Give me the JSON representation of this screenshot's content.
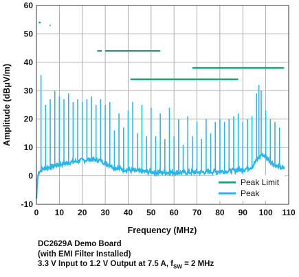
{
  "chart_data": {
    "type": "line",
    "xlabel": "Frequency (MHz)",
    "ylabel": "Amplitude (dBμV/m)",
    "xlim": [
      0,
      110
    ],
    "ylim": [
      -10,
      60
    ],
    "x_ticks": [
      0,
      10,
      20,
      30,
      40,
      50,
      60,
      70,
      80,
      90,
      100,
      110
    ],
    "y_ticks": [
      -10,
      0,
      10,
      20,
      30,
      40,
      50,
      60
    ],
    "grid": true,
    "legend_position": "bottom-right",
    "colors": {
      "peak_limit": "#1aa874",
      "peak": "#29b6e8",
      "grid": "#999999",
      "axis": "#333333"
    },
    "series": [
      {
        "name": "Peak Limit",
        "style": "step-segments",
        "segments": [
          {
            "x": [
              1.0,
              1.8
            ],
            "y": 54
          },
          {
            "x": [
              5.8,
              6.2
            ],
            "y": 53
          },
          {
            "x": [
              26.5,
              28.5
            ],
            "y": 44
          },
          {
            "x": [
              30,
              54
            ],
            "y": 44
          },
          {
            "x": [
              41,
              88
            ],
            "y": 34
          },
          {
            "x": [
              68,
              108
            ],
            "y": 38
          }
        ]
      },
      {
        "name": "Peak",
        "noise_floor": [
          [
            0,
            -8
          ],
          [
            0.5,
            -1
          ],
          [
            1,
            1.5
          ],
          [
            3,
            2.5
          ],
          [
            6,
            3.2
          ],
          [
            10,
            4
          ],
          [
            15,
            4.8
          ],
          [
            20,
            5.5
          ],
          [
            24,
            5.8
          ],
          [
            28,
            5.4
          ],
          [
            31,
            4.2
          ],
          [
            34,
            3.0
          ],
          [
            38,
            2.3
          ],
          [
            45,
            1.6
          ],
          [
            55,
            1.2
          ],
          [
            65,
            1.2
          ],
          [
            75,
            1.4
          ],
          [
            85,
            1.8
          ],
          [
            90,
            2.2
          ],
          [
            94,
            3.2
          ],
          [
            96,
            5.5
          ],
          [
            98,
            7.5
          ],
          [
            100,
            7.0
          ],
          [
            102,
            5.2
          ],
          [
            104,
            3.8
          ],
          [
            106,
            3.0
          ],
          [
            108,
            2.5
          ]
        ],
        "peaks": [
          [
            2,
            35.5
          ],
          [
            4,
            25
          ],
          [
            6,
            27
          ],
          [
            8,
            30
          ],
          [
            10,
            28
          ],
          [
            12,
            27
          ],
          [
            14,
            29
          ],
          [
            16,
            26
          ],
          [
            18,
            27
          ],
          [
            20,
            26
          ],
          [
            22,
            27
          ],
          [
            24,
            28
          ],
          [
            26,
            25
          ],
          [
            28,
            27
          ],
          [
            30,
            25
          ],
          [
            32,
            26
          ],
          [
            34,
            16
          ],
          [
            36,
            22
          ],
          [
            38,
            17
          ],
          [
            40,
            23
          ],
          [
            42,
            26
          ],
          [
            44,
            15
          ],
          [
            46,
            25
          ],
          [
            48,
            14
          ],
          [
            50,
            24
          ],
          [
            52,
            14
          ],
          [
            54,
            22
          ],
          [
            56,
            13
          ],
          [
            58,
            24
          ],
          [
            60,
            14
          ],
          [
            62,
            20
          ],
          [
            64,
            11
          ],
          [
            66,
            21
          ],
          [
            68,
            14
          ],
          [
            70,
            19
          ],
          [
            72,
            13
          ],
          [
            74,
            20
          ],
          [
            76,
            15
          ],
          [
            78,
            19
          ],
          [
            80,
            20
          ],
          [
            82,
            19
          ],
          [
            84,
            20
          ],
          [
            86,
            21
          ],
          [
            88,
            22
          ],
          [
            90,
            19
          ],
          [
            92,
            20
          ],
          [
            94,
            21
          ],
          [
            96,
            29
          ],
          [
            97,
            32
          ],
          [
            98,
            30
          ],
          [
            100,
            23
          ],
          [
            102,
            20
          ],
          [
            104,
            19
          ],
          [
            106,
            17
          ]
        ]
      }
    ]
  },
  "caption": {
    "line1": "DC2629A Demo Board",
    "line2": "(with EMI Filter Installed)",
    "line3_prefix": "3.3 V Input to 1.2 V Output at 7.5 A, f",
    "line3_sub": "SW",
    "line3_suffix": " = 2 MHz"
  }
}
